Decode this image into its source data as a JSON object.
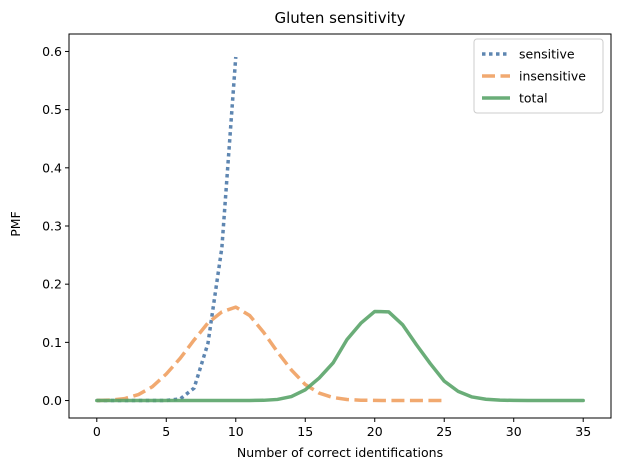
{
  "chart_data": {
    "type": "line",
    "title": "Gluten sensitivity",
    "xlabel": "Number of correct identifications",
    "ylabel": "PMF",
    "xlim": [
      -2,
      37
    ],
    "ylim": [
      -0.03,
      0.63
    ],
    "xticks": [
      0,
      5,
      10,
      15,
      20,
      25,
      30,
      35
    ],
    "yticks": [
      0.0,
      0.1,
      0.2,
      0.3,
      0.4,
      0.5,
      0.6
    ],
    "xtick_labels": [
      "0",
      "5",
      "10",
      "15",
      "20",
      "25",
      "30",
      "35"
    ],
    "ytick_labels": [
      "0.0",
      "0.1",
      "0.2",
      "0.3",
      "0.4",
      "0.5",
      "0.6"
    ],
    "grid": false,
    "legend_position": "top-right",
    "series": [
      {
        "name": "sensitive",
        "color": "#4c79a8",
        "style": "dotted",
        "x": [
          0,
          1,
          2,
          3,
          4,
          5,
          6,
          7,
          8,
          9,
          10
        ],
        "y": [
          0.0,
          0.0,
          0.0,
          0.0,
          0.0,
          0.0002,
          0.0028,
          0.0213,
          0.0984,
          0.2628,
          0.5905
        ]
      },
      {
        "name": "insensitive",
        "color": "#f0a060",
        "style": "dashed",
        "x": [
          0,
          1,
          2,
          3,
          4,
          5,
          6,
          7,
          8,
          9,
          10,
          11,
          12,
          13,
          14,
          15,
          16,
          17,
          18,
          19,
          20,
          21,
          22,
          23,
          24,
          25
        ],
        "y": [
          0.0001,
          0.0008,
          0.0033,
          0.0103,
          0.0238,
          0.0456,
          0.0726,
          0.1041,
          0.1334,
          0.1524,
          0.1606,
          0.1461,
          0.1174,
          0.0835,
          0.0526,
          0.0275,
          0.0128,
          0.0052,
          0.0018,
          0.0006,
          0.0002,
          0.0,
          0.0,
          0.0,
          0.0,
          0.0
        ]
      },
      {
        "name": "total",
        "color": "#5aa469",
        "style": "solid",
        "x": [
          0,
          1,
          2,
          3,
          4,
          5,
          6,
          7,
          8,
          9,
          10,
          11,
          12,
          13,
          14,
          15,
          16,
          17,
          18,
          19,
          20,
          21,
          22,
          23,
          24,
          25,
          26,
          27,
          28,
          29,
          30,
          31,
          32,
          33,
          34,
          35
        ],
        "y": [
          0.0,
          0.0,
          0.0,
          0.0,
          0.0,
          0.0,
          0.0,
          0.0,
          0.0,
          0.0,
          0.0,
          0.0001,
          0.0004,
          0.0019,
          0.0068,
          0.0185,
          0.0387,
          0.0646,
          0.1047,
          0.1329,
          0.1531,
          0.1525,
          0.1304,
          0.0959,
          0.0634,
          0.0334,
          0.0158,
          0.0062,
          0.0022,
          0.0007,
          0.0002,
          0.0,
          0.0,
          0.0,
          0.0,
          0.0
        ]
      }
    ]
  }
}
